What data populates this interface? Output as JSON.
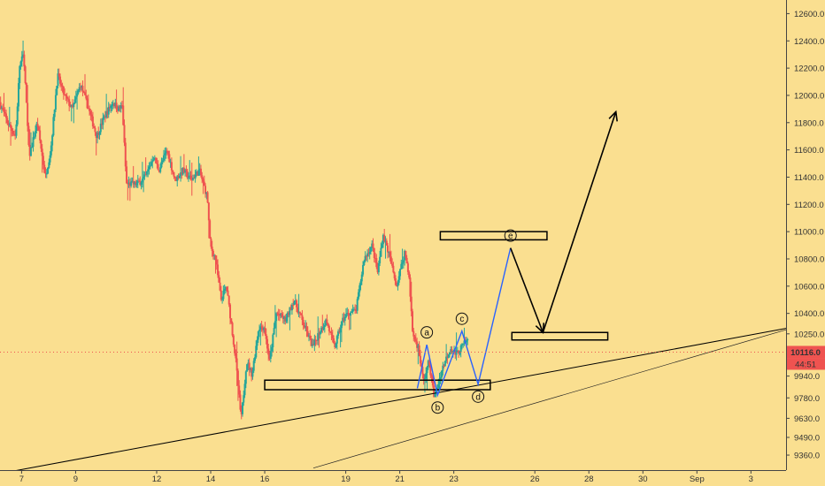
{
  "chart_data": {
    "type": "candlestick",
    "y_ticks": [
      9360,
      9490,
      9630,
      9780,
      9940,
      10100,
      10250,
      10400,
      10600,
      10800,
      11000,
      11200,
      11400,
      11600,
      11800,
      12000,
      12200,
      12400,
      12600
    ],
    "x_ticks": [
      {
        "label": "7",
        "day": 7
      },
      {
        "label": "9",
        "day": 9
      },
      {
        "label": "12",
        "day": 12
      },
      {
        "label": "14",
        "day": 14
      },
      {
        "label": "16",
        "day": 16
      },
      {
        "label": "19",
        "day": 19
      },
      {
        "label": "21",
        "day": 21
      },
      {
        "label": "23",
        "day": 23
      },
      {
        "label": "26",
        "day": 26
      },
      {
        "label": "28",
        "day": 28
      },
      {
        "label": "30",
        "day": 30
      },
      {
        "label": "Sep",
        "day": 32
      },
      {
        "label": "3",
        "day": 34
      }
    ],
    "ylim": [
      9250,
      12700
    ],
    "xlim": [
      6.2,
      35.3
    ],
    "last_price": {
      "label": "10116.0",
      "countdown": "44:51",
      "value": 10116
    },
    "colors": {
      "up": "#26a69a",
      "down": "#ef5350",
      "wave": "#2962ff",
      "projection": "#000000",
      "background": "#fadf90"
    },
    "price_path": [
      [
        6.2,
        11950
      ],
      [
        6.5,
        11800
      ],
      [
        6.8,
        11700
      ],
      [
        6.95,
        12220
      ],
      [
        7.1,
        12300
      ],
      [
        7.3,
        11550
      ],
      [
        7.6,
        11800
      ],
      [
        7.9,
        11400
      ],
      [
        8.1,
        11600
      ],
      [
        8.35,
        12150
      ],
      [
        8.6,
        12000
      ],
      [
        8.9,
        11900
      ],
      [
        9.2,
        12080
      ],
      [
        9.5,
        11900
      ],
      [
        9.8,
        11700
      ],
      [
        10.1,
        11850
      ],
      [
        10.4,
        11950
      ],
      [
        10.6,
        11900
      ],
      [
        10.75,
        11920
      ],
      [
        10.9,
        11350
      ],
      [
        11.3,
        11350
      ],
      [
        11.6,
        11400
      ],
      [
        11.9,
        11550
      ],
      [
        12.1,
        11450
      ],
      [
        12.4,
        11600
      ],
      [
        12.7,
        11380
      ],
      [
        13.0,
        11450
      ],
      [
        13.3,
        11380
      ],
      [
        13.6,
        11450
      ],
      [
        13.9,
        11250
      ],
      [
        14.0,
        10900
      ],
      [
        14.2,
        10800
      ],
      [
        14.4,
        10500
      ],
      [
        14.6,
        10600
      ],
      [
        14.8,
        10300
      ],
      [
        14.95,
        10050
      ],
      [
        15.15,
        9620
      ],
      [
        15.35,
        10050
      ],
      [
        15.55,
        9950
      ],
      [
        15.8,
        10300
      ],
      [
        16.0,
        10300
      ],
      [
        16.2,
        10050
      ],
      [
        16.45,
        10400
      ],
      [
        16.8,
        10350
      ],
      [
        17.1,
        10500
      ],
      [
        17.5,
        10300
      ],
      [
        17.8,
        10150
      ],
      [
        18.0,
        10250
      ],
      [
        18.3,
        10350
      ],
      [
        18.6,
        10150
      ],
      [
        18.9,
        10350
      ],
      [
        19.1,
        10400
      ],
      [
        19.4,
        10420
      ],
      [
        19.7,
        10800
      ],
      [
        20.0,
        10900
      ],
      [
        20.2,
        10700
      ],
      [
        20.4,
        10980
      ],
      [
        20.6,
        10850
      ],
      [
        20.9,
        10600
      ],
      [
        21.2,
        10850
      ],
      [
        21.35,
        10700
      ],
      [
        21.5,
        10250
      ],
      [
        21.7,
        10150
      ],
      [
        21.9,
        9900
      ],
      [
        22.1,
        10050
      ],
      [
        22.3,
        9780
      ],
      [
        22.6,
        10000
      ],
      [
        22.9,
        10150
      ],
      [
        23.1,
        10100
      ],
      [
        23.3,
        10150
      ],
      [
        23.5,
        10200
      ]
    ],
    "support_box": {
      "x1": 16.0,
      "x2": 24.35,
      "y1": 9840,
      "y2": 9910
    },
    "resistance_box_e": {
      "x1": 22.5,
      "x2": 26.45,
      "y1": 10940,
      "y2": 11000
    },
    "target_box": {
      "x1": 25.15,
      "x2": 28.7,
      "y1": 10205,
      "y2": 10260
    },
    "trendline_main": {
      "x1": 6.2,
      "y1": 9225,
      "x2": 35.3,
      "y2": 10290
    },
    "trendline_lower": {
      "x1": 17.8,
      "y1": 9265,
      "x2": 35.3,
      "y2": 10280
    },
    "wave_points": [
      {
        "label": "",
        "x": 21.65,
        "y": 9850
      },
      {
        "label": "a",
        "x": 22.0,
        "y": 10170
      },
      {
        "label": "b",
        "x": 22.4,
        "y": 9800
      },
      {
        "label": "c",
        "x": 23.3,
        "y": 10270
      },
      {
        "label": "d",
        "x": 23.9,
        "y": 9880
      },
      {
        "label": "e",
        "x": 25.1,
        "y": 10880
      }
    ],
    "projection": [
      {
        "x": 25.1,
        "y": 10880
      },
      {
        "x": 26.3,
        "y": 10260
      },
      {
        "x": 29.0,
        "y": 11880
      }
    ]
  }
}
